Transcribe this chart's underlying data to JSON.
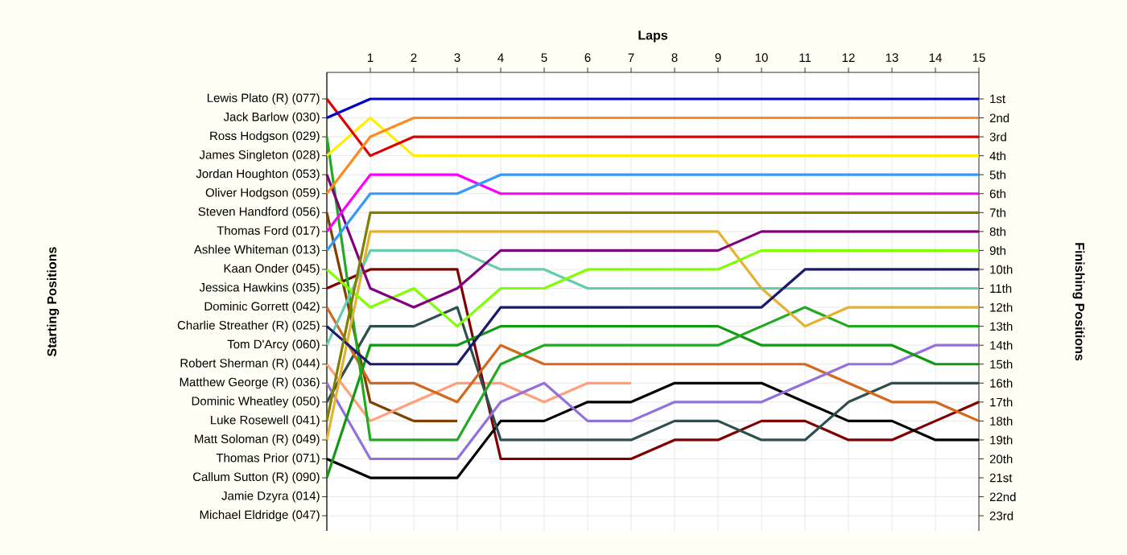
{
  "chart_data": {
    "type": "line",
    "xlabel": "Laps",
    "ylabel": "Finishing Positions",
    "x": [
      0,
      1,
      2,
      3,
      4,
      5,
      6,
      7,
      8,
      9,
      10,
      11,
      12,
      13,
      14,
      15
    ],
    "xlim": [
      0,
      15
    ],
    "xticks": [
      1,
      2,
      3,
      4,
      5,
      6,
      7,
      8,
      9,
      10,
      11,
      12,
      13,
      14,
      15
    ],
    "ylim": [
      23.8,
      -0.4
    ],
    "yticks": [
      {
        "value": 1,
        "label": "1st"
      },
      {
        "value": 2,
        "label": "2nd"
      },
      {
        "value": 3,
        "label": "3rd"
      },
      {
        "value": 4,
        "label": "4th"
      },
      {
        "value": 5,
        "label": "5th"
      },
      {
        "value": 6,
        "label": "6th"
      },
      {
        "value": 7,
        "label": "7th"
      },
      {
        "value": 8,
        "label": "8th"
      },
      {
        "value": 9,
        "label": "9th"
      },
      {
        "value": 10,
        "label": "10th"
      },
      {
        "value": 11,
        "label": "11th"
      },
      {
        "value": 12,
        "label": "12th"
      },
      {
        "value": 13,
        "label": "13th"
      },
      {
        "value": 14,
        "label": "14th"
      },
      {
        "value": 15,
        "label": "15th"
      },
      {
        "value": 16,
        "label": "16th"
      },
      {
        "value": 17,
        "label": "17th"
      },
      {
        "value": 18,
        "label": "18th"
      },
      {
        "value": 19,
        "label": "19th"
      },
      {
        "value": 20,
        "label": "20th"
      },
      {
        "value": 21,
        "label": "21st"
      },
      {
        "value": 22,
        "label": "22nd"
      },
      {
        "value": 23,
        "label": "23rd"
      }
    ],
    "annotations": [
      "Starting Positions",
      "Lewis Plato (R) (077)",
      "Jack Barlow (030)",
      "Ross Hodgson (029)",
      "James Singleton (028)",
      "Jordan Houghton (053)",
      "Oliver Hodgson (059)",
      "Steven Handford (056)",
      "Thomas Ford (017)",
      "Ashlee Whiteman (013)",
      "Kaan Onder (045)",
      "Jessica Hawkins (035)",
      "Dominic Gorrett (042)",
      "Charlie Streather (R) (025)",
      "Tom D'Arcy (060)",
      "Robert Sherman (R) (044)",
      "Matthew George (R) (036)",
      "Dominic Wheatley (050)",
      "Luke Rosewell (041)",
      "Matt Soloman (R) (049)",
      "Thomas Prior (071)",
      "Callum Sutton  (R) (090)",
      "Jamie Dzyra (014)",
      "Michael Eldridge (047)"
    ],
    "grid": true,
    "marker": "none",
    "line_style": "solid",
    "series": [
      {
        "color": "#804000",
        "values": [
          7,
          17,
          18,
          18,
          null,
          null,
          null,
          null,
          null,
          null,
          null,
          null,
          null,
          null,
          null,
          null
        ]
      },
      {
        "color": "#ffa07a",
        "values": [
          15,
          18,
          17,
          16,
          16,
          17,
          16,
          16,
          null,
          null,
          null,
          null,
          null,
          null,
          null,
          null
        ]
      },
      {
        "color": "#800000",
        "values": [
          11,
          10,
          10,
          10,
          20,
          20,
          20,
          20,
          19,
          19,
          18,
          18,
          19,
          19,
          18,
          17
        ]
      },
      {
        "color": "#000000",
        "values": [
          20,
          21,
          21,
          21,
          18,
          18,
          17,
          17,
          16,
          16,
          16,
          17,
          18,
          18,
          19,
          19
        ]
      },
      {
        "color": "#2f4f4f",
        "values": [
          17,
          13,
          13,
          12,
          19,
          19,
          19,
          19,
          18,
          18,
          19,
          19,
          17,
          16,
          16,
          16
        ]
      },
      {
        "color": "#d2691e",
        "values": [
          12,
          16,
          16,
          17,
          14,
          15,
          15,
          15,
          15,
          15,
          15,
          15,
          16,
          17,
          17,
          18
        ]
      },
      {
        "color": "#9370db",
        "values": [
          16,
          20,
          20,
          20,
          17,
          16,
          18,
          18,
          17,
          17,
          17,
          16,
          15,
          15,
          14,
          14
        ]
      },
      {
        "color": "#119911",
        "values": [
          21,
          14,
          14,
          14,
          13,
          13,
          13,
          13,
          13,
          13,
          14,
          14,
          14,
          14,
          15,
          15
        ]
      },
      {
        "color": "#22aa22",
        "values": [
          3,
          19,
          19,
          19,
          15,
          14,
          14,
          14,
          14,
          14,
          13,
          12,
          13,
          13,
          13,
          13
        ]
      },
      {
        "color": "#e6b030",
        "values": [
          19,
          8,
          8,
          8,
          8,
          8,
          8,
          8,
          8,
          8,
          11,
          13,
          12,
          12,
          12,
          12
        ]
      },
      {
        "color": "#66ccaa",
        "values": [
          14,
          9,
          9,
          9,
          10,
          10,
          11,
          11,
          11,
          11,
          11,
          11,
          11,
          11,
          11,
          11
        ]
      },
      {
        "color": "#1a1a6e",
        "values": [
          13,
          15,
          15,
          15,
          12,
          12,
          12,
          12,
          12,
          12,
          12,
          10,
          10,
          10,
          10,
          10
        ]
      },
      {
        "color": "#80ff00",
        "values": [
          10,
          12,
          11,
          13,
          11,
          11,
          10,
          10,
          10,
          10,
          9,
          9,
          9,
          9,
          9,
          9
        ]
      },
      {
        "color": "#800080",
        "values": [
          5,
          11,
          12,
          11,
          9,
          9,
          9,
          9,
          9,
          9,
          8,
          8,
          8,
          8,
          8,
          8
        ]
      },
      {
        "color": "#808000",
        "values": [
          18,
          7,
          7,
          7,
          7,
          7,
          7,
          7,
          7,
          7,
          7,
          7,
          7,
          7,
          7,
          7
        ]
      },
      {
        "color": "#ff00ff",
        "values": [
          8,
          5,
          5,
          5,
          6,
          6,
          6,
          6,
          6,
          6,
          6,
          6,
          6,
          6,
          6,
          6
        ]
      },
      {
        "color": "#3399ff",
        "values": [
          9,
          6,
          6,
          6,
          5,
          5,
          5,
          5,
          5,
          5,
          5,
          5,
          5,
          5,
          5,
          5
        ]
      },
      {
        "color": "#ffee00",
        "values": [
          4,
          2,
          4,
          4,
          4,
          4,
          4,
          4,
          4,
          4,
          4,
          4,
          4,
          4,
          4,
          4
        ]
      },
      {
        "color": "#e00000",
        "values": [
          1,
          4,
          3,
          3,
          3,
          3,
          3,
          3,
          3,
          3,
          3,
          3,
          3,
          3,
          3,
          3
        ]
      },
      {
        "color": "#ff8c1a",
        "values": [
          6,
          3,
          2,
          2,
          2,
          2,
          2,
          2,
          2,
          2,
          2,
          2,
          2,
          2,
          2,
          2
        ]
      },
      {
        "color": "#0000cc",
        "values": [
          2,
          1,
          1,
          1,
          1,
          1,
          1,
          1,
          1,
          1,
          1,
          1,
          1,
          1,
          1,
          1
        ]
      }
    ]
  }
}
